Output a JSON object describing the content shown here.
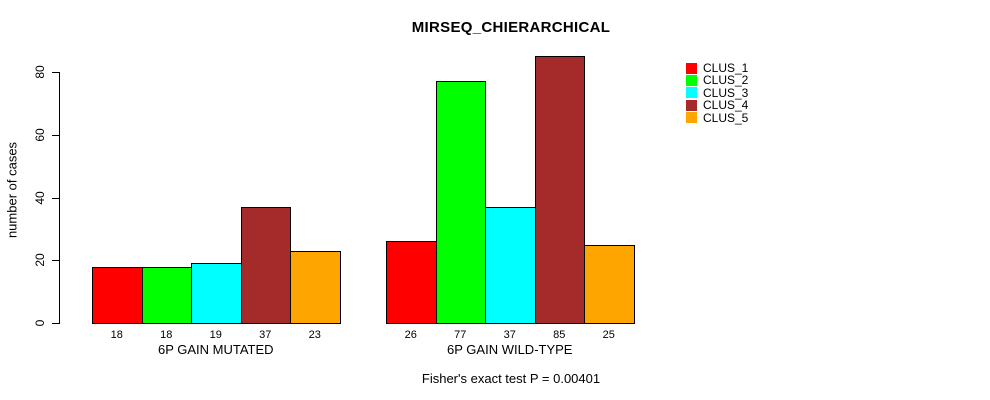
{
  "chart_data": {
    "type": "bar",
    "title": "MIRSEQ_CHIERARCHICAL",
    "ylabel": "number of cases",
    "xlabel": "",
    "ylim": [
      0,
      80
    ],
    "yticks": [
      0,
      20,
      40,
      60,
      80
    ],
    "grid": false,
    "legend_position": "right",
    "categories": [
      "6P GAIN MUTATED",
      "6P GAIN WILD-TYPE"
    ],
    "series": [
      {
        "name": "CLUS_1",
        "color": "#FF0000",
        "values": [
          18,
          26
        ]
      },
      {
        "name": "CLUS_2",
        "color": "#00FF00",
        "values": [
          18,
          77
        ]
      },
      {
        "name": "CLUS_3",
        "color": "#00FFFF",
        "values": [
          19,
          37
        ]
      },
      {
        "name": "CLUS_4",
        "color": "#A52A2A",
        "values": [
          37,
          85
        ]
      },
      {
        "name": "CLUS_5",
        "color": "#FFA500",
        "values": [
          23,
          25
        ]
      }
    ],
    "bar_value_labels": [
      [
        "18",
        "18",
        "19",
        "37",
        "23"
      ],
      [
        "26",
        "77",
        "37",
        "85",
        "25"
      ]
    ],
    "footnote": "Fisher's exact test P = 0.00401"
  }
}
